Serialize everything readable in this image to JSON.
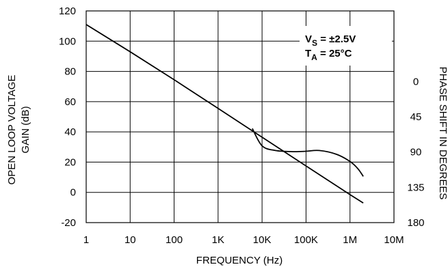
{
  "chart_data": {
    "type": "line",
    "xlabel": "FREQUENCY (Hz)",
    "ylabel_left": [
      "OPEN LOOP VOLTAGE",
      "GAIN (dB)"
    ],
    "ylabel_right": "PHASE SHIFT IN DEGREES",
    "x_scale": "log",
    "xlim": [
      1,
      10000000
    ],
    "x_ticks": [
      1,
      10,
      100,
      1000,
      10000,
      100000,
      1000000,
      10000000
    ],
    "x_tick_labels": [
      "1",
      "10",
      "100",
      "1K",
      "10K",
      "100K",
      "1M",
      "10M"
    ],
    "ylim_left": [
      -20,
      120
    ],
    "y_ticks_left": [
      -20,
      0,
      20,
      40,
      60,
      80,
      100,
      120
    ],
    "y_tick_labels_left": [
      "-20",
      "0",
      "20",
      "40",
      "60",
      "80",
      "100",
      "120"
    ],
    "ylim_right": [
      180,
      -90
    ],
    "y_ticks_right": [
      0,
      45,
      90,
      135,
      180
    ],
    "y_tick_labels_right": [
      "0",
      "45",
      "90",
      "135",
      "180"
    ],
    "grid": true,
    "series": [
      {
        "axis": "left",
        "x": [
          1,
          10,
          100,
          1000,
          10000,
          100000,
          1000000,
          2000000
        ],
        "y": [
          111,
          93,
          74.5,
          55.5,
          36.5,
          17.5,
          -1.5,
          -7
        ]
      },
      {
        "axis": "right",
        "x": [
          6000,
          10000,
          20000,
          50000,
          100000,
          200000,
          500000,
          1000000,
          1500000,
          2000000
        ],
        "y": [
          60,
          82,
          88,
          89.5,
          89,
          88,
          93,
          102,
          111,
          121
        ]
      }
    ],
    "annotations": [
      {
        "main": "V",
        "sub": "S",
        "rest": " = ±2.5V"
      },
      {
        "main": "T",
        "sub": "A",
        "rest": " = 25°C"
      }
    ]
  }
}
